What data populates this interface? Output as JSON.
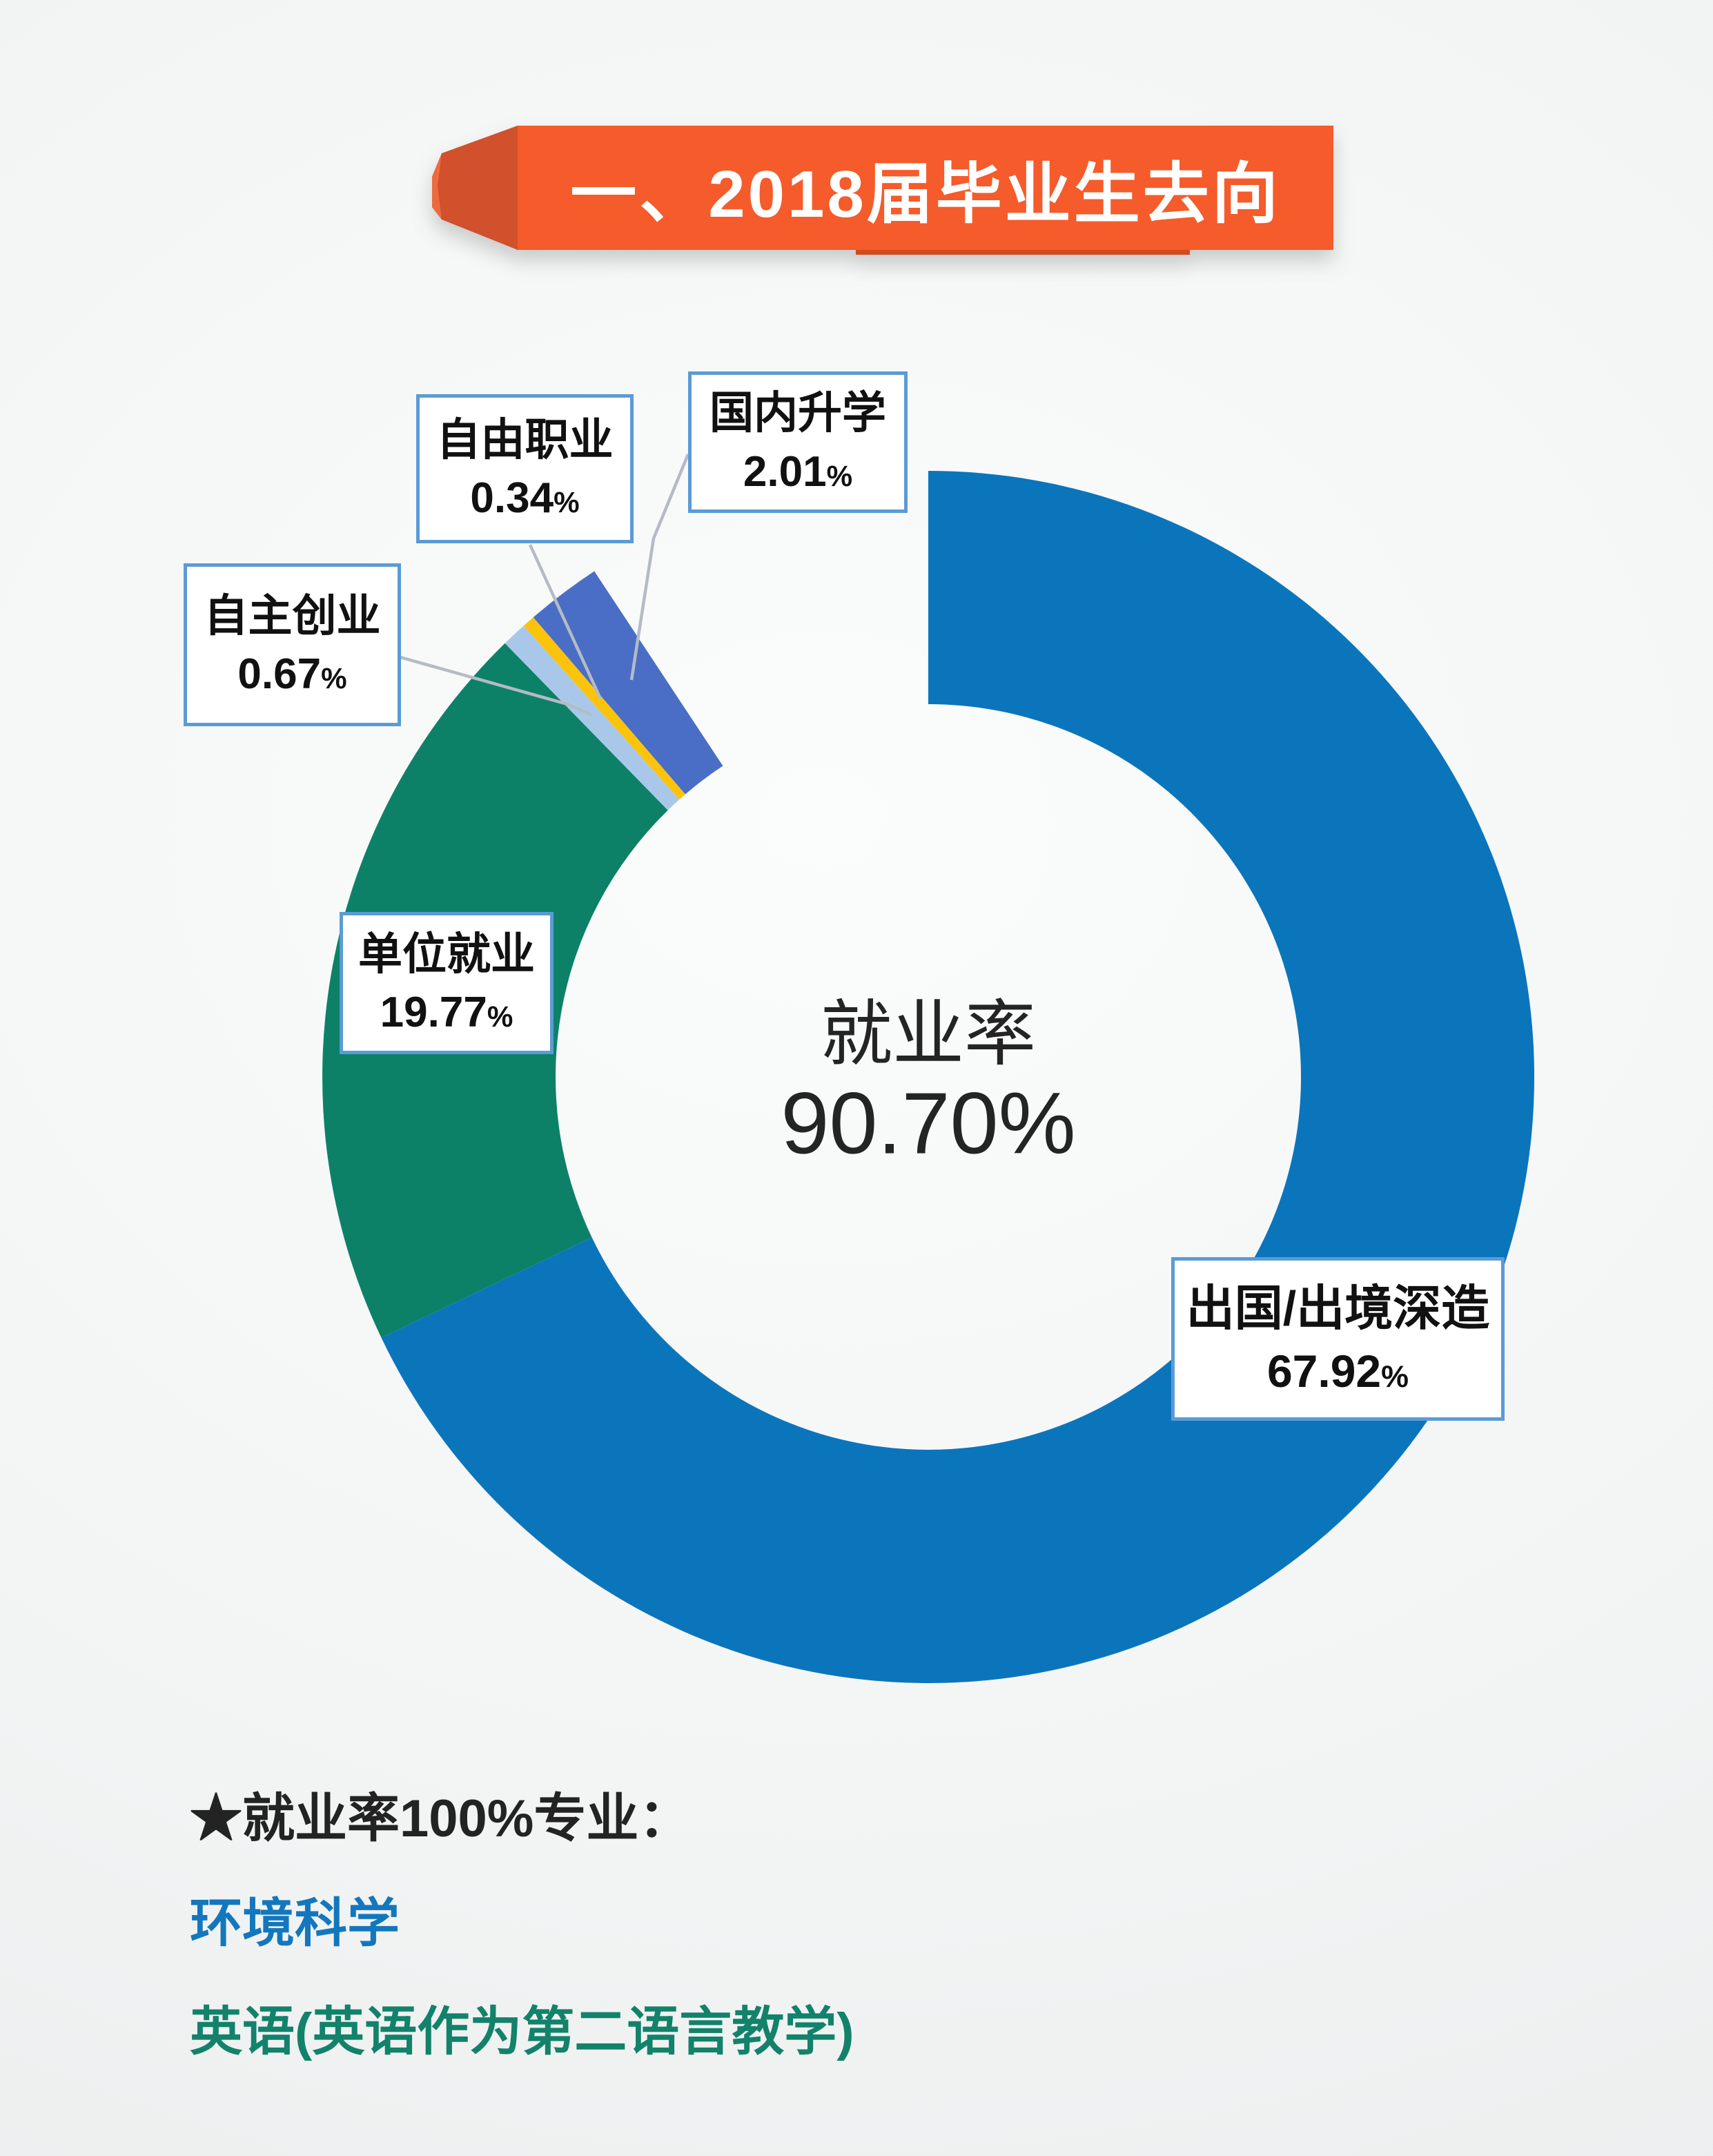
{
  "banner": {
    "title": "一、2018届毕业生去向",
    "bg_color": "#f55b2b",
    "fold_color": "#d0512b",
    "fold_edge_color": "#ee6a3e",
    "text_color": "#ffffff"
  },
  "chart_data": {
    "type": "pie",
    "subtype": "donut",
    "title": "2018届毕业生去向",
    "center_label": {
      "line1": "就业率",
      "line2": "90.70%"
    },
    "unit": "%",
    "slices": [
      {
        "label": "出国/出境深造",
        "value": 67.92,
        "color": "#0b75bc"
      },
      {
        "label": "单位就业",
        "value": 19.77,
        "color": "#0d8168"
      },
      {
        "label": "自主创业",
        "value": 0.67,
        "color": "#a9c8e9"
      },
      {
        "label": "自由职业",
        "value": 0.34,
        "color": "#fcc30d"
      },
      {
        "label": "国内升学",
        "value": 2.01,
        "color": "#4a6ec5"
      }
    ],
    "total": 100,
    "unplotted_gap_pct": 9.29,
    "layout_hints": {
      "start_angle_deg": 0,
      "clockwise": true,
      "legend": "none",
      "labels": "callout boxes, white fill, blue border",
      "leader_line_color": "#b4bbc5",
      "label_text_color": "#111111"
    }
  },
  "footer": {
    "heading": "★就业率100%专业：",
    "majors": [
      {
        "text": "环境科学",
        "color": "#1377bd"
      },
      {
        "text": "英语(英语作为第二语言教学)",
        "color": "#12826a"
      }
    ]
  }
}
